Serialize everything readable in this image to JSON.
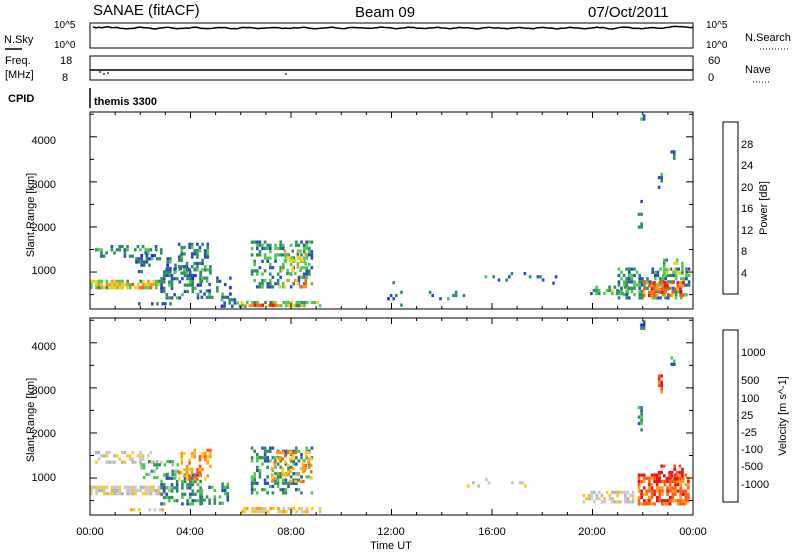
{
  "header": {
    "station": "SANAE (fitACF)",
    "beam": "Beam 09",
    "date": "07/Oct/2011"
  },
  "params": {
    "left_labels": {
      "nsky": "N.Sky",
      "freq_line1": "Freq.",
      "freq_line2": "[MHz]",
      "cpid": "CPID"
    },
    "right_labels": {
      "nsearch": "N.Search",
      "nave": "Nave"
    },
    "noise_ticks_left": [
      "10^5",
      "10^0"
    ],
    "noise_ticks_right": [
      "10^5",
      "10^0"
    ],
    "freq_ticks": [
      "18",
      "8"
    ],
    "nave_ticks": [
      "60",
      "0"
    ],
    "cpid_text": "themis 3300"
  },
  "colors": {
    "power": [
      "#1e1ee6",
      "#2850b4",
      "#2d8c64",
      "#50c850",
      "#e6d21e",
      "#f0961e",
      "#ff5a14",
      "#e61414"
    ],
    "velocity": [
      "#e61414",
      "#ff5a14",
      "#ff9b14",
      "#ffc814",
      "#c8c8c8",
      "#b4b4b4",
      "#50c850",
      "#2d8c64",
      "#2850b4",
      "#1e1ee6"
    ]
  },
  "chart_data": [
    {
      "type": "heatmap",
      "name": "power-panel",
      "xlabel": "",
      "ylabel": "Slant Range [km]",
      "xlim": [
        0,
        24
      ],
      "ylim": [
        180,
        4550
      ],
      "y_ticks": [
        "1000",
        "2000",
        "3000",
        "4000"
      ],
      "colorbar": {
        "label": "Power [dB]",
        "ticks": [
          "4",
          "8",
          "12",
          "16",
          "20",
          "24",
          "28"
        ],
        "range": [
          0,
          32
        ]
      },
      "regions": [
        {
          "x0": 0.2,
          "x1": 2.8,
          "y0": 1380,
          "y1": 1600,
          "level": 8,
          "density": 0.35
        },
        {
          "x0": 0.0,
          "x1": 2.8,
          "y0": 650,
          "y1": 830,
          "level": 14,
          "density": 0.7
        },
        {
          "x0": 0.2,
          "x1": 2.6,
          "y0": 650,
          "y1": 760,
          "level": 20,
          "density": 0.6
        },
        {
          "x0": 1.8,
          "x1": 3.6,
          "y0": 1000,
          "y1": 1400,
          "level": 6,
          "density": 0.3
        },
        {
          "x0": 2.8,
          "x1": 4.4,
          "y0": 450,
          "y1": 1100,
          "level": 6,
          "density": 0.45
        },
        {
          "x0": 3.5,
          "x1": 4.8,
          "y0": 1000,
          "y1": 1650,
          "level": 8,
          "density": 0.4
        },
        {
          "x0": 4.4,
          "x1": 5.6,
          "y0": 450,
          "y1": 900,
          "level": 6,
          "density": 0.4
        },
        {
          "x0": 1.6,
          "x1": 3.2,
          "y0": 260,
          "y1": 330,
          "level": 6,
          "density": 0.5
        },
        {
          "x0": 5.2,
          "x1": 6.2,
          "y0": 250,
          "y1": 420,
          "level": 6,
          "density": 0.4
        },
        {
          "x0": 6.4,
          "x1": 8.8,
          "y0": 700,
          "y1": 1700,
          "level": 8,
          "density": 0.35
        },
        {
          "x0": 7.6,
          "x1": 8.6,
          "y0": 1000,
          "y1": 1500,
          "level": 14,
          "density": 0.35
        },
        {
          "x0": 6.0,
          "x1": 9.2,
          "y0": 230,
          "y1": 360,
          "level": 14,
          "density": 0.7
        },
        {
          "x0": 6.2,
          "x1": 7.4,
          "y0": 230,
          "y1": 300,
          "level": 26,
          "density": 0.8
        },
        {
          "x0": 7.4,
          "x1": 8.6,
          "y0": 650,
          "y1": 850,
          "level": 20,
          "density": 0.4
        },
        {
          "x0": 19.8,
          "x1": 21.4,
          "y0": 500,
          "y1": 700,
          "level": 10,
          "density": 0.4
        },
        {
          "x0": 21.0,
          "x1": 23.8,
          "y0": 450,
          "y1": 1100,
          "level": 8,
          "density": 0.5
        },
        {
          "x0": 22.0,
          "x1": 23.6,
          "y0": 450,
          "y1": 800,
          "level": 22,
          "density": 0.65
        },
        {
          "x0": 22.8,
          "x1": 23.6,
          "y0": 1000,
          "y1": 1300,
          "level": 12,
          "density": 0.4
        },
        {
          "x0": 22.6,
          "x1": 22.8,
          "y0": 2900,
          "y1": 3200,
          "level": 6,
          "density": 0.7
        },
        {
          "x0": 21.9,
          "x1": 22.1,
          "y0": 4300,
          "y1": 4500,
          "level": 6,
          "density": 0.6
        },
        {
          "x0": 21.8,
          "x1": 22.0,
          "y0": 2000,
          "y1": 2600,
          "level": 6,
          "density": 0.3
        },
        {
          "x0": 23.1,
          "x1": 23.3,
          "y0": 3500,
          "y1": 3700,
          "level": 6,
          "density": 0.5
        },
        {
          "x0": 15.5,
          "x1": 19.0,
          "y0": 750,
          "y1": 1000,
          "level": 6,
          "density": 0.08
        },
        {
          "x0": 11.0,
          "x1": 15.0,
          "y0": 300,
          "y1": 800,
          "level": 6,
          "density": 0.04
        }
      ]
    },
    {
      "type": "heatmap",
      "name": "velocity-panel",
      "xlabel": "Time UT",
      "ylabel": "Slant Range [km]",
      "xlim": [
        0,
        24
      ],
      "ylim": [
        180,
        4550
      ],
      "x_ticks": [
        "00:00",
        "04:00",
        "08:00",
        "12:00",
        "16:00",
        "20:00",
        "00:00"
      ],
      "y_ticks": [
        "1000",
        "2000",
        "3000",
        "4000"
      ],
      "colorbar": {
        "label": "Velocity [m s^-1]",
        "ticks": [
          "-1000",
          "-500",
          "-100",
          "-25",
          "25",
          "100",
          "500",
          "1000"
        ],
        "range": [
          -1250,
          1250
        ]
      },
      "regions": [
        {
          "x0": 0.2,
          "x1": 2.8,
          "y0": 1380,
          "y1": 1600,
          "level": 4,
          "density": 0.35
        },
        {
          "x0": 0.0,
          "x1": 3.2,
          "y0": 650,
          "y1": 830,
          "level": 4,
          "density": 0.8
        },
        {
          "x0": 2.0,
          "x1": 3.6,
          "y0": 1000,
          "y1": 1400,
          "level": 6,
          "density": 0.3
        },
        {
          "x0": 2.8,
          "x1": 4.4,
          "y0": 450,
          "y1": 1100,
          "level": 7,
          "density": 0.45
        },
        {
          "x0": 3.5,
          "x1": 4.8,
          "y0": 1000,
          "y1": 1650,
          "level": 2,
          "density": 0.35
        },
        {
          "x0": 4.4,
          "x1": 5.6,
          "y0": 450,
          "y1": 900,
          "level": 7,
          "density": 0.4
        },
        {
          "x0": 1.6,
          "x1": 3.2,
          "y0": 260,
          "y1": 330,
          "level": 3,
          "density": 0.5
        },
        {
          "x0": 6.4,
          "x1": 8.8,
          "y0": 700,
          "y1": 1700,
          "level": 7,
          "density": 0.35
        },
        {
          "x0": 7.2,
          "x1": 8.8,
          "y0": 900,
          "y1": 1600,
          "level": 2,
          "density": 0.3
        },
        {
          "x0": 6.0,
          "x1": 9.2,
          "y0": 230,
          "y1": 360,
          "level": 3,
          "density": 0.65
        },
        {
          "x0": 15.0,
          "x1": 17.5,
          "y0": 800,
          "y1": 1000,
          "level": 4,
          "density": 0.08
        },
        {
          "x0": 19.6,
          "x1": 21.6,
          "y0": 500,
          "y1": 720,
          "level": 4,
          "density": 0.5
        },
        {
          "x0": 21.8,
          "x1": 23.8,
          "y0": 450,
          "y1": 1100,
          "level": 1,
          "density": 0.7
        },
        {
          "x0": 22.6,
          "x1": 23.6,
          "y0": 1000,
          "y1": 1300,
          "level": 0,
          "density": 0.4
        },
        {
          "x0": 22.6,
          "x1": 22.8,
          "y0": 2900,
          "y1": 3300,
          "level": 1,
          "density": 0.6
        },
        {
          "x0": 21.9,
          "x1": 22.1,
          "y0": 4300,
          "y1": 4500,
          "level": 8,
          "density": 0.6
        },
        {
          "x0": 21.8,
          "x1": 22.0,
          "y0": 2000,
          "y1": 2600,
          "level": 7,
          "density": 0.3
        },
        {
          "x0": 23.1,
          "x1": 23.3,
          "y0": 3500,
          "y1": 3700,
          "level": 7,
          "density": 0.5
        }
      ]
    }
  ]
}
